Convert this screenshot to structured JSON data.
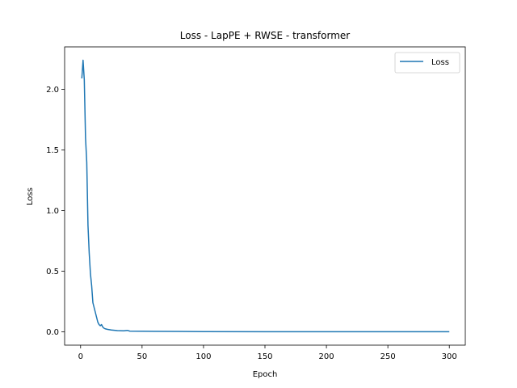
{
  "chart_data": {
    "type": "line",
    "title": "Loss - LapPE + RWSE - transformer",
    "xlabel": "Epoch",
    "ylabel": "Loss",
    "xlim": [
      -13,
      313
    ],
    "ylim": [
      -0.11,
      2.35
    ],
    "xticks": [
      0,
      50,
      100,
      150,
      200,
      250,
      300
    ],
    "yticks": [
      0.0,
      0.5,
      1.0,
      1.5,
      2.0
    ],
    "xtick_labels": [
      "0",
      "50",
      "100",
      "150",
      "200",
      "250",
      "300"
    ],
    "ytick_labels": [
      "0.0",
      "0.5",
      "1.0",
      "1.5",
      "2.0"
    ],
    "grid": false,
    "legend": {
      "placement": "top-right"
    },
    "colors": {
      "line": "#1f77b4",
      "axes": "#000000",
      "legend_border": "#cccccc"
    },
    "series": [
      {
        "name": "Loss",
        "x": [
          1,
          2,
          3,
          4,
          5,
          6,
          7,
          8,
          9,
          10,
          11,
          12,
          13,
          14,
          15,
          16,
          17,
          18,
          19,
          20,
          22,
          25,
          30,
          35,
          38,
          40,
          50,
          60,
          80,
          100,
          150,
          200,
          250,
          300
        ],
        "y": [
          2.09,
          2.24,
          2.08,
          1.6,
          1.4,
          0.88,
          0.65,
          0.48,
          0.38,
          0.24,
          0.2,
          0.16,
          0.12,
          0.08,
          0.06,
          0.05,
          0.06,
          0.04,
          0.03,
          0.025,
          0.02,
          0.015,
          0.01,
          0.008,
          0.012,
          0.006,
          0.005,
          0.004,
          0.003,
          0.002,
          0.001,
          0.001,
          0.001,
          0.001
        ]
      }
    ]
  }
}
